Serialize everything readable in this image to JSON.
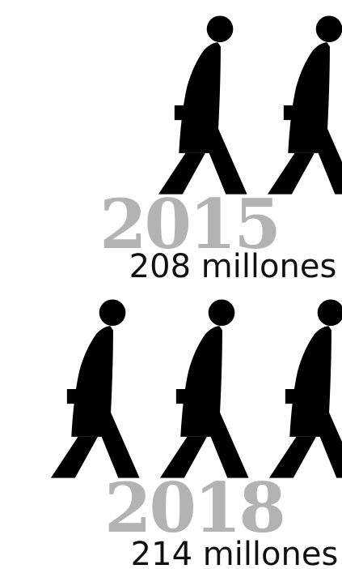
{
  "chart_data": {
    "type": "pictograph",
    "icon": "walking-person-icon",
    "colors": {
      "figure": "#000000",
      "year": "#b3b3b3",
      "label": "#111111",
      "background": "#ffffff"
    },
    "rows": [
      {
        "year": "2015",
        "value": 208,
        "label": "208 millones",
        "figures_visible": 2
      },
      {
        "year": "2018",
        "value": 214,
        "label": "214 millones",
        "figures_visible": 3
      }
    ]
  }
}
